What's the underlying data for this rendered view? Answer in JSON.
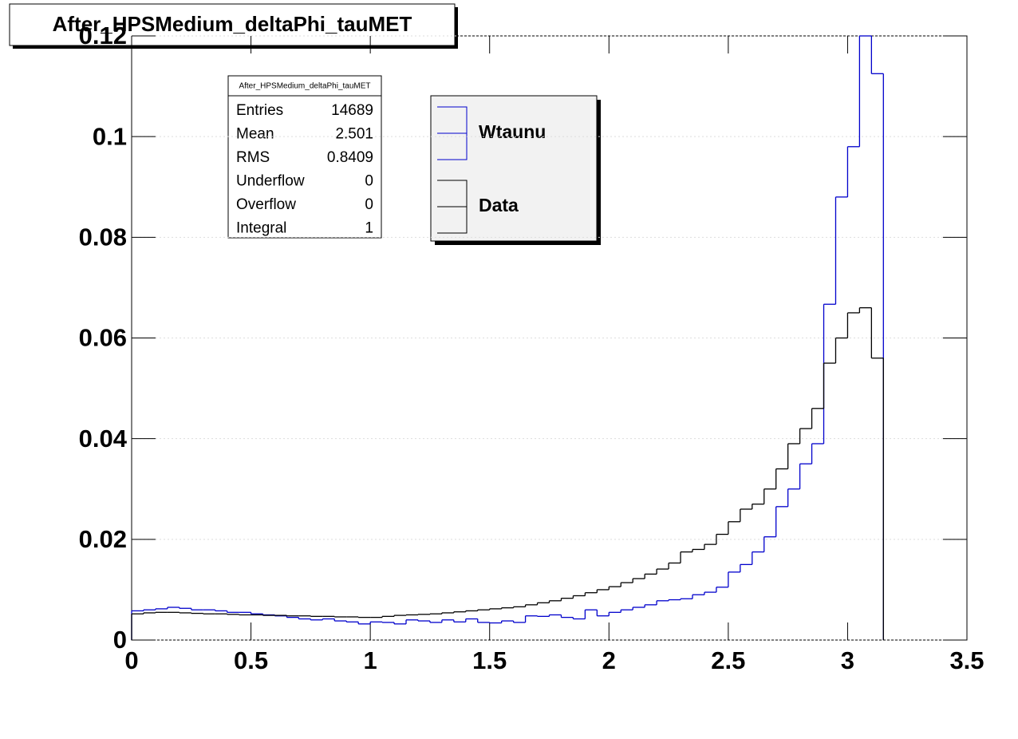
{
  "chart_data": {
    "type": "histogram",
    "title": "After_HPSMedium_deltaPhi_tauMET",
    "bins": [
      0,
      0.05,
      0.1,
      0.15,
      0.2,
      0.25,
      0.3,
      0.35,
      0.4,
      0.45,
      0.5,
      0.55,
      0.6,
      0.65,
      0.7,
      0.75,
      0.8,
      0.85,
      0.9,
      0.95,
      1,
      1.05,
      1.1,
      1.15,
      1.2,
      1.25,
      1.3,
      1.35,
      1.4,
      1.45,
      1.5,
      1.55,
      1.6,
      1.65,
      1.7,
      1.75,
      1.8,
      1.85,
      1.9,
      1.95,
      2,
      2.05,
      2.1,
      2.15,
      2.2,
      2.25,
      2.3,
      2.35,
      2.4,
      2.45,
      2.5,
      2.55,
      2.6,
      2.65,
      2.7,
      2.75,
      2.8,
      2.85,
      2.9,
      2.95,
      3,
      3.05,
      3.1,
      3.15
    ],
    "series": [
      {
        "name": "Wtaunu",
        "color": "#0000cc",
        "values": [
          0.0058,
          0.006,
          0.0062,
          0.0065,
          0.0063,
          0.006,
          0.006,
          0.0058,
          0.0055,
          0.0055,
          0.0052,
          0.005,
          0.0048,
          0.0045,
          0.0042,
          0.004,
          0.0042,
          0.0038,
          0.0036,
          0.0032,
          0.0036,
          0.0035,
          0.0032,
          0.004,
          0.0038,
          0.0035,
          0.004,
          0.0036,
          0.0042,
          0.0035,
          0.0034,
          0.0038,
          0.0035,
          0.0048,
          0.0047,
          0.005,
          0.0045,
          0.0042,
          0.006,
          0.0048,
          0.0055,
          0.006,
          0.0065,
          0.007,
          0.0078,
          0.008,
          0.0082,
          0.009,
          0.0095,
          0.0105,
          0.0135,
          0.015,
          0.0175,
          0.0205,
          0.0265,
          0.03,
          0.035,
          0.039,
          0.0667,
          0.088,
          0.098,
          0.12,
          0.1125
        ]
      },
      {
        "name": "Data",
        "color": "#000000",
        "values": [
          0.0052,
          0.0054,
          0.0055,
          0.0055,
          0.0054,
          0.0053,
          0.0052,
          0.0052,
          0.0051,
          0.005,
          0.005,
          0.0049,
          0.0049,
          0.0048,
          0.0048,
          0.0047,
          0.0047,
          0.0046,
          0.0046,
          0.0045,
          0.0045,
          0.0047,
          0.0049,
          0.005,
          0.0051,
          0.0052,
          0.0054,
          0.0056,
          0.0058,
          0.006,
          0.0062,
          0.0064,
          0.0066,
          0.007,
          0.0074,
          0.0078,
          0.0083,
          0.0088,
          0.0094,
          0.01,
          0.0106,
          0.0114,
          0.0122,
          0.0131,
          0.0141,
          0.0153,
          0.0175,
          0.018,
          0.019,
          0.021,
          0.0235,
          0.026,
          0.027,
          0.03,
          0.034,
          0.039,
          0.042,
          0.046,
          0.055,
          0.06,
          0.065,
          0.066,
          0.056
        ]
      }
    ],
    "xlim": [
      0,
      3.5
    ],
    "xticks": [
      0,
      0.5,
      1,
      1.5,
      2,
      2.5,
      3,
      3.5
    ],
    "ylim": [
      0,
      0.12
    ],
    "yticks": [
      0,
      0.02,
      0.04,
      0.06,
      0.08,
      0.1,
      0.12
    ],
    "grid": true,
    "stats": {
      "title": "After_HPSMedium_deltaPhi_tauMET",
      "rows": [
        [
          "Entries",
          14689
        ],
        [
          "Mean",
          2.501
        ],
        [
          "RMS",
          0.8409
        ],
        [
          "Underflow",
          0
        ],
        [
          "Overflow",
          0
        ],
        [
          "Integral",
          1
        ]
      ]
    }
  }
}
